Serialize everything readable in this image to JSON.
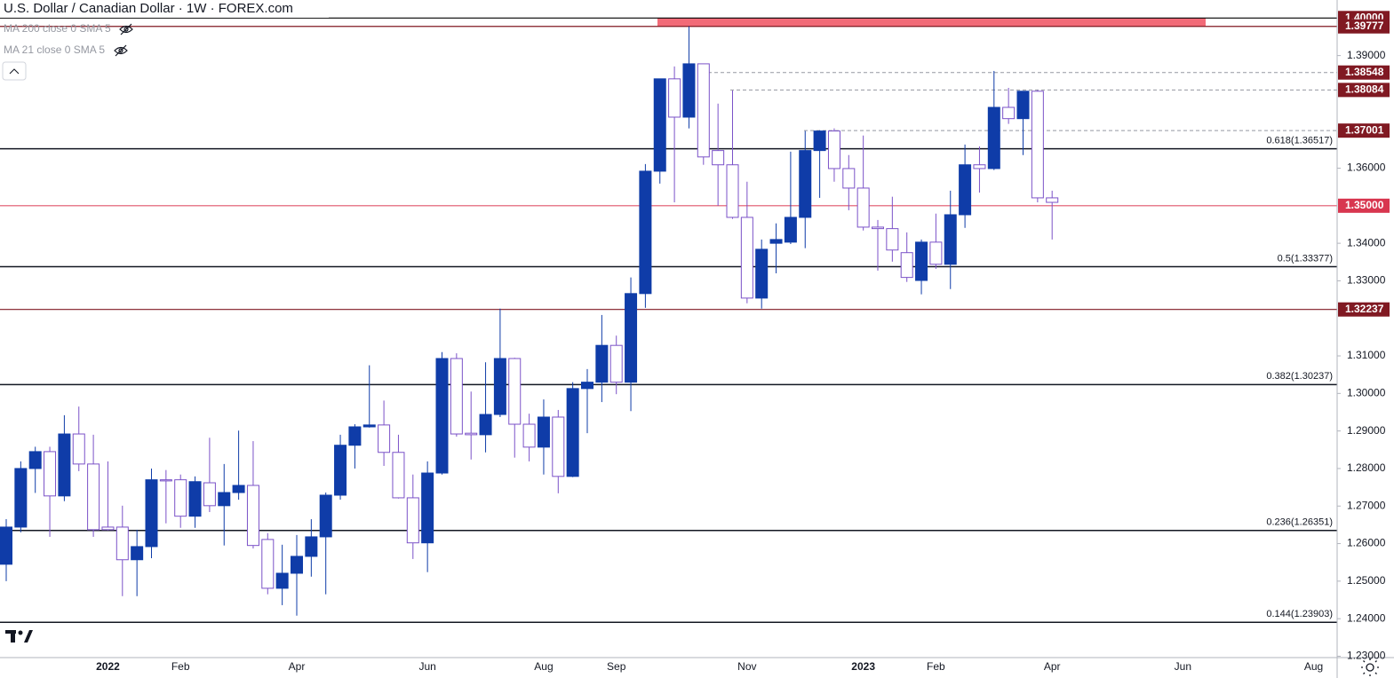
{
  "chart_data": {
    "type": "candlestick",
    "title": "U.S. Dollar / Canadian Dollar · 1W · FOREX.com",
    "indicators": [
      "MA 200 close 0 SMA 5",
      "MA 21 close 0 SMA 5"
    ],
    "categories": [
      null,
      null,
      null,
      null,
      null,
      null,
      null,
      "2022",
      null,
      null,
      null,
      null,
      "Feb",
      null,
      null,
      null,
      null,
      null,
      null,
      null,
      "Apr",
      null,
      null,
      null,
      null,
      null,
      null,
      null,
      null,
      "Jun",
      null,
      null,
      null,
      null,
      null,
      null,
      null,
      "Aug",
      null,
      null,
      null,
      null,
      "Sep",
      null,
      null,
      null,
      null,
      null,
      null,
      null,
      null,
      "Nov",
      null,
      null,
      null,
      null,
      null,
      null,
      null,
      "2023",
      null,
      null,
      null,
      null,
      "Feb",
      null,
      null,
      null,
      null,
      null,
      null,
      null,
      "Apr",
      null,
      null,
      null,
      null,
      null,
      null,
      null,
      null,
      "Jun",
      null,
      null,
      null,
      null,
      null,
      null,
      null,
      null,
      "Aug",
      null
    ],
    "open": [
      1.2545,
      1.2644,
      1.28,
      1.2845,
      1.2727,
      1.2892,
      1.2812,
      1.2644,
      1.2644,
      1.2557,
      1.2592,
      1.277,
      1.277,
      1.2673,
      1.2762,
      1.2701,
      1.2736,
      1.2755,
      1.2611,
      1.2481,
      1.2521,
      1.2566,
      1.2618,
      1.2729,
      1.2862,
      1.2911,
      1.2916,
      1.2843,
      1.2722,
      1.2602,
      1.2788,
      1.3093,
      1.2894,
      1.289,
      1.2944,
      1.3093,
      1.2918,
      1.2857,
      1.2937,
      1.2779,
      1.3013,
      1.303,
      1.3128,
      1.303,
      1.3266,
      1.3592,
      1.3838,
      1.3736,
      1.3878,
      1.3647,
      1.3609,
      1.3469,
      1.3254,
      1.34,
      1.3403,
      1.3469,
      1.3647,
      1.3699,
      1.3599,
      1.3547,
      1.3443,
      1.3439,
      1.3375,
      1.3301,
      1.3403,
      1.3344,
      1.3476,
      1.3609,
      1.3599,
      1.3762,
      1.3732,
      1.3805,
      1.3521,
      null,
      null,
      null,
      null,
      null,
      null,
      null,
      null,
      null,
      null,
      null,
      null,
      null,
      null,
      null,
      null,
      null,
      null,
      null
    ],
    "high": [
      1.2665,
      1.2819,
      1.2858,
      1.2858,
      1.2942,
      1.2965,
      1.289,
      1.2819,
      1.2701,
      1.2637,
      1.28,
      1.2796,
      1.2784,
      1.2779,
      1.2882,
      1.2812,
      1.2901,
      1.2873,
      1.2628,
      1.2597,
      1.2623,
      1.2665,
      1.2736,
      1.289,
      1.2918,
      1.3075,
      1.2981,
      1.289,
      1.2784,
      1.2819,
      1.311,
      1.3107,
      1.3005,
      1.3083,
      1.3226,
      1.3095,
      1.2946,
      1.2984,
      1.2956,
      1.303,
      1.3065,
      1.3209,
      1.3154,
      1.3309,
      1.3611,
      1.3838,
      1.3871,
      1.3978,
      1.3878,
      1.3772,
      1.3807,
      1.3564,
      1.341,
      1.3453,
      1.3644,
      1.3699,
      1.3701,
      1.3706,
      1.3635,
      1.3687,
      1.3462,
      1.3524,
      1.3429,
      1.341,
      1.3479,
      1.354,
      1.3663,
      1.3658,
      1.3859,
      1.3814,
      1.3805,
      1.3808,
      1.354,
      null,
      null,
      null,
      null,
      null,
      null,
      null,
      null,
      null,
      null,
      null,
      null,
      null,
      null,
      null,
      null,
      null,
      null,
      null
    ],
    "low": [
      1.25,
      1.263,
      1.2735,
      1.2618,
      1.2713,
      1.2793,
      1.2618,
      1.2635,
      1.246,
      1.246,
      1.2561,
      1.2654,
      1.2642,
      1.2642,
      1.2684,
      1.2595,
      1.2717,
      1.2587,
      1.2465,
      1.2436,
      1.2408,
      1.2512,
      1.2465,
      1.2717,
      1.28,
      1.2909,
      1.2807,
      1.272,
      1.2559,
      1.2524,
      1.2784,
      1.2885,
      1.2824,
      1.2843,
      1.2937,
      1.2829,
      1.2819,
      1.2784,
      1.2734,
      1.2777,
      1.2894,
      1.2977,
      1.2998,
      1.2953,
      1.3228,
      1.3559,
      1.3509,
      1.3706,
      1.3609,
      1.35,
      1.3465,
      1.324,
      1.3226,
      1.332,
      1.3398,
      1.3387,
      1.3521,
      1.3564,
      1.3488,
      1.3434,
      1.3327,
      1.3351,
      1.3297,
      1.3264,
      1.3332,
      1.3278,
      1.3441,
      1.3535,
      1.3595,
      1.3718,
      1.3635,
      1.3509,
      1.341,
      null,
      null,
      null,
      null,
      null,
      null,
      null,
      null,
      null,
      null,
      null,
      null,
      null,
      null,
      null,
      null,
      null,
      null,
      null
    ],
    "close": [
      1.2644,
      1.28,
      1.2845,
      1.2727,
      1.2892,
      1.2812,
      1.2637,
      1.2637,
      1.2557,
      1.2592,
      1.277,
      1.2767,
      1.2673,
      1.2765,
      1.2701,
      1.2736,
      1.2755,
      1.2595,
      1.2481,
      1.2521,
      1.2566,
      1.2618,
      1.2729,
      1.2862,
      1.2911,
      1.2916,
      1.2843,
      1.2722,
      1.2602,
      1.2788,
      1.3093,
      1.2892,
      1.289,
      1.2944,
      1.3093,
      1.2918,
      1.2857,
      1.2937,
      1.2779,
      1.3013,
      1.303,
      1.3128,
      1.303,
      1.3266,
      1.3592,
      1.3838,
      1.3736,
      1.3878,
      1.363,
      1.3609,
      1.3469,
      1.3254,
      1.3384,
      1.341,
      1.3469,
      1.3647,
      1.3699,
      1.3599,
      1.3547,
      1.3443,
      1.3439,
      1.3382,
      1.3309,
      1.3403,
      1.3344,
      1.3476,
      1.3609,
      1.3599,
      1.3762,
      1.3732,
      1.3805,
      1.3521,
      1.3509,
      null,
      null,
      null,
      null,
      null,
      null,
      null,
      null,
      null,
      null,
      null,
      null,
      null,
      null,
      null,
      null,
      null,
      null,
      null
    ],
    "up_color": "#0f3ca8",
    "down_color": "#7b52c8",
    "ylim": [
      1.2294,
      1.4048
    ],
    "yticks": [
      {
        "value": 1.23,
        "label": "1.23000"
      },
      {
        "value": 1.24,
        "label": "1.24000"
      },
      {
        "value": 1.25,
        "label": "1.25000"
      },
      {
        "value": 1.26,
        "label": "1.26000"
      },
      {
        "value": 1.27,
        "label": "1.27000"
      },
      {
        "value": 1.28,
        "label": "1.28000"
      },
      {
        "value": 1.29,
        "label": "1.29000"
      },
      {
        "value": 1.3,
        "label": "1.30000"
      },
      {
        "value": 1.31,
        "label": "1.31000"
      },
      {
        "value": 1.33,
        "label": "1.33000"
      },
      {
        "value": 1.34,
        "label": "1.34000"
      },
      {
        "value": 1.36,
        "label": "1.36000"
      },
      {
        "value": 1.39,
        "label": "1.39000"
      }
    ],
    "grid": false,
    "zone": {
      "range": [
        1.39777,
        1.4
      ],
      "color": "#f26b78"
    },
    "levels": [
      {
        "value": 1.4,
        "label": "1.40000",
        "color": "#000000",
        "tag_color": "#801922",
        "dashed": false
      },
      {
        "value": 1.39777,
        "label": "1.39777",
        "color": "#801922",
        "tag_color": "#801922",
        "dashed": false
      },
      {
        "value": 1.38548,
        "label": "1.38548",
        "color": "#9598a1",
        "tag_color": "#801922",
        "dashed": true
      },
      {
        "value": 1.38084,
        "label": "1.38084",
        "color": "#9598a1",
        "tag_color": "#801922",
        "dashed": true
      },
      {
        "value": 1.37001,
        "label": "1.37001",
        "color": "#9598a1",
        "tag_color": "#801922",
        "dashed": true
      },
      {
        "value": 1.35,
        "label": "1.35000",
        "color": "#e0546a",
        "tag_color": "#d8364f",
        "dashed": false
      },
      {
        "value": 1.32237,
        "label": "1.32237",
        "color": "#801922",
        "tag_color": "#801922",
        "dashed": false
      }
    ],
    "fib_levels": [
      {
        "value": 1.36517,
        "label": "0.618(1.36517)"
      },
      {
        "value": 1.33377,
        "label": "0.5(1.33377)"
      },
      {
        "value": 1.30237,
        "label": "0.382(1.30237)"
      },
      {
        "value": 1.26351,
        "label": "0.236(1.26351)"
      },
      {
        "value": 1.23903,
        "label": "0.144(1.23903)"
      }
    ]
  }
}
